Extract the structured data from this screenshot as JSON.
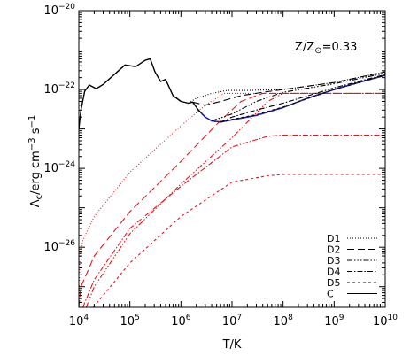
{
  "chart_data": {
    "type": "line",
    "annotation_parts": {
      "a": "Z/Z",
      "sub": "⊙",
      "b": "=0.33"
    },
    "xlabel": "T/K",
    "ylabel_parts": {
      "main": "Λ",
      "sub": "c",
      "mid1": "/erg cm",
      "sup1": "−3",
      "mid2": " s",
      "sup2": "−1"
    },
    "xscale": "log",
    "yscale": "log",
    "xlim": [
      10000,
      10000000000
    ],
    "ylim": [
      3e-28,
      1e-20
    ],
    "xticks": [
      {
        "value": 10000,
        "base": "10",
        "exp": "4"
      },
      {
        "value": 100000,
        "base": "10",
        "exp": "5"
      },
      {
        "value": 1000000,
        "base": "10",
        "exp": "6"
      },
      {
        "value": 10000000,
        "base": "10",
        "exp": "7"
      },
      {
        "value": 100000000,
        "base": "10",
        "exp": "8"
      },
      {
        "value": 1000000000,
        "base": "10",
        "exp": "9"
      },
      {
        "value": 10000000000,
        "base": "10",
        "exp": "10"
      }
    ],
    "yticks": [
      {
        "value": 1e-26,
        "base": "10",
        "exp": "−26"
      },
      {
        "value": 1e-24,
        "base": "10",
        "exp": "−24"
      },
      {
        "value": 1e-22,
        "base": "10",
        "exp": "−22"
      },
      {
        "value": 1e-20,
        "base": "10",
        "exp": "−20"
      }
    ],
    "legend_position": "bottom-right",
    "legend": [
      {
        "label": "D1",
        "dash": "1,2"
      },
      {
        "label": "D2",
        "dash": "8,4"
      },
      {
        "label": "D3",
        "dash": "6,2,1.5,2,1.5,2,1.5,2"
      },
      {
        "label": "D4",
        "dash": "6,2,1.5,2"
      },
      {
        "label": "D5",
        "dash": "3,3"
      },
      {
        "label": "C",
        "dash": ""
      }
    ],
    "colors": {
      "red": "#e8141e",
      "black": "#000000",
      "blue": "#1f1fb4"
    },
    "series": [
      {
        "name": "D1",
        "color": "#e8141e",
        "dash": "1,2",
        "points": [
          [
            10000,
            3e-28
          ],
          [
            10500,
            6e-27
          ],
          [
            12000,
            1.5e-26
          ],
          [
            20000,
            6e-26
          ],
          [
            100000,
            8e-25
          ],
          [
            1000000,
            1.2e-23
          ],
          [
            3000000,
            4e-23
          ],
          [
            7000000,
            8e-23
          ],
          [
            20000000,
            8e-23
          ],
          [
            10000000000,
            8e-23
          ]
        ]
      },
      {
        "name": "D2",
        "color": "#e8141e",
        "dash": "8,4",
        "points": [
          [
            10000,
            3e-28
          ],
          [
            11000,
            1e-27
          ],
          [
            15000,
            2.5e-27
          ],
          [
            20000,
            6e-27
          ],
          [
            100000,
            8e-26
          ],
          [
            1000000,
            1.5e-24
          ],
          [
            5000000,
            1.3e-23
          ],
          [
            15000000,
            5e-23
          ],
          [
            40000000,
            8e-23
          ],
          [
            10000000000,
            8e-23
          ]
        ]
      },
      {
        "name": "D3",
        "color": "#e8141e",
        "dash": "6,2,1.5,2,1.5,2,1.5,2",
        "points": [
          [
            14000,
            3e-28
          ],
          [
            20000,
            1e-27
          ],
          [
            100000,
            2.2e-26
          ],
          [
            1000000,
            4e-25
          ],
          [
            10000000,
            6e-24
          ],
          [
            50000000,
            5e-23
          ],
          [
            100000000,
            8e-23
          ],
          [
            10000000000,
            8e-23
          ]
        ]
      },
      {
        "name": "D4",
        "color": "#e8141e",
        "dash": "6,2,1.5,2",
        "points": [
          [
            12000,
            3e-28
          ],
          [
            20000,
            1.5e-27
          ],
          [
            100000,
            3e-26
          ],
          [
            1000000,
            3.5e-25
          ],
          [
            10000000,
            3.5e-24
          ],
          [
            50000000,
            6.5e-24
          ],
          [
            100000000,
            7e-24
          ],
          [
            10000000000,
            7e-24
          ]
        ]
      },
      {
        "name": "D5",
        "color": "#e8141e",
        "dash": "3,3",
        "points": [
          [
            19000,
            3e-28
          ],
          [
            30000,
            6e-28
          ],
          [
            100000,
            4e-27
          ],
          [
            1000000,
            6e-26
          ],
          [
            10000000,
            4.5e-25
          ],
          [
            50000000,
            6.5e-25
          ],
          [
            100000000,
            7e-25
          ],
          [
            10000000000,
            7e-25
          ]
        ]
      },
      {
        "name": "C",
        "color": "#000000",
        "dash": "",
        "points": [
          [
            10000,
            1e-23
          ],
          [
            11000,
            3e-23
          ],
          [
            13000,
            9e-23
          ],
          [
            16000,
            1.3e-22
          ],
          [
            22000,
            1.05e-22
          ],
          [
            30000,
            1.35e-22
          ],
          [
            60000,
            3e-22
          ],
          [
            80000,
            4.2e-22
          ],
          [
            130000,
            3.8e-22
          ],
          [
            200000,
            5.5e-22
          ],
          [
            250000,
            6e-22
          ],
          [
            310000,
            2.8e-22
          ],
          [
            400000,
            1.6e-22
          ],
          [
            500000,
            1.8e-22
          ],
          [
            700000,
            7e-23
          ],
          [
            1000000,
            5e-23
          ],
          [
            1400000,
            4.5e-23
          ],
          [
            1700000,
            4.8e-23
          ],
          [
            2200000,
            3e-23
          ],
          [
            3000000,
            2e-23
          ],
          [
            4000000,
            1.6e-23
          ],
          [
            6000000,
            1.5e-23
          ],
          [
            10000000,
            1.7e-23
          ],
          [
            30000000,
            2.2e-23
          ],
          [
            100000000,
            3.5e-23
          ],
          [
            300000000,
            6e-23
          ],
          [
            1000000000,
            1e-22
          ],
          [
            3000000000,
            1.5e-22
          ],
          [
            10000000000,
            2.3e-22
          ]
        ]
      },
      {
        "name": "C-blue",
        "color": "#1f1fb4",
        "dash": "",
        "points": [
          [
            2500000,
            2.5e-23
          ],
          [
            3000000,
            2e-23
          ],
          [
            4000000,
            1.6e-23
          ],
          [
            6000000,
            1.5e-23
          ],
          [
            10000000,
            1.7e-23
          ],
          [
            30000000,
            2.2e-23
          ],
          [
            100000000,
            3.5e-23
          ],
          [
            300000000,
            6e-23
          ],
          [
            1000000000,
            1e-22
          ],
          [
            3000000000,
            1.5e-22
          ],
          [
            10000000000,
            2.3e-22
          ]
        ]
      },
      {
        "name": "D1-total",
        "color": "#000000",
        "dash": "1,2",
        "points": [
          [
            1400000,
            4.5e-23
          ],
          [
            2000000,
            6e-23
          ],
          [
            4000000,
            8e-23
          ],
          [
            8000000,
            9.5e-23
          ],
          [
            20000000,
            9.5e-23
          ],
          [
            100000000,
            1e-22
          ],
          [
            1000000000,
            1.5e-22
          ],
          [
            10000000000,
            2.8e-22
          ]
        ]
      },
      {
        "name": "D2-total",
        "color": "#000000",
        "dash": "8,4",
        "points": [
          [
            1700000,
            4.8e-23
          ],
          [
            3000000,
            4e-23
          ],
          [
            6000000,
            5e-23
          ],
          [
            15000000,
            7e-23
          ],
          [
            40000000,
            8.5e-23
          ],
          [
            100000000,
            1e-22
          ],
          [
            1000000000,
            1.5e-22
          ],
          [
            10000000000,
            2.8e-22
          ]
        ]
      },
      {
        "name": "D3-total",
        "color": "#000000",
        "dash": "6,2,1.5,2,1.5,2,1.5,2",
        "points": [
          [
            4000000,
            1.6e-23
          ],
          [
            10000000,
            2.4e-23
          ],
          [
            30000000,
            5e-23
          ],
          [
            100000000,
            8.5e-23
          ],
          [
            1000000000,
            1.4e-22
          ],
          [
            10000000000,
            2.6e-22
          ]
        ]
      },
      {
        "name": "D4-total",
        "color": "#000000",
        "dash": "6,2,1.5,2",
        "points": [
          [
            6000000,
            1.5e-23
          ],
          [
            10000000,
            2e-23
          ],
          [
            30000000,
            3e-23
          ],
          [
            100000000,
            4.5e-23
          ],
          [
            1000000000,
            1.1e-22
          ],
          [
            10000000000,
            2.4e-22
          ]
        ]
      },
      {
        "name": "D5-total",
        "color": "#000000",
        "dash": "3,3",
        "points": [
          [
            6000000,
            1.5e-23
          ],
          [
            10000000,
            1.75e-23
          ],
          [
            30000000,
            2.3e-23
          ],
          [
            100000000,
            3.6e-23
          ],
          [
            1000000000,
            1e-22
          ],
          [
            10000000000,
            2.3e-22
          ]
        ]
      }
    ]
  }
}
